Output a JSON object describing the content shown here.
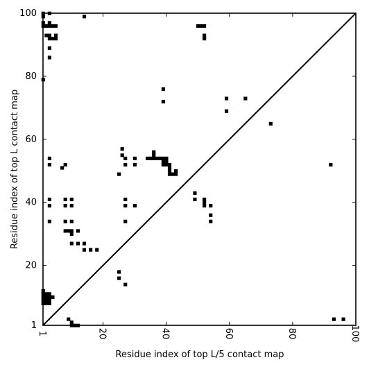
{
  "chart_data": {
    "type": "heatmap",
    "title": "",
    "xlabel": "Residue index of top L/5 contact map",
    "ylabel": "Residue index of top L contact map",
    "xlim": [
      1,
      100
    ],
    "ylim": [
      1,
      100
    ],
    "x_ticks": [
      "1",
      "20",
      "40",
      "60",
      "80",
      "100"
    ],
    "y_ticks": [
      "1",
      "20",
      "40",
      "60",
      "80",
      "100"
    ],
    "x_tick_values": [
      1,
      20,
      40,
      60,
      80,
      100
    ],
    "y_tick_values": [
      1,
      20,
      40,
      60,
      80,
      100
    ],
    "diagonal": true,
    "mark_color": "#000000",
    "upper_contacts": [
      [
        1,
        100
      ],
      [
        1,
        99
      ],
      [
        1,
        97
      ],
      [
        1,
        96
      ],
      [
        2,
        96
      ],
      [
        3,
        96
      ],
      [
        4,
        96
      ],
      [
        5,
        96
      ],
      [
        2,
        93
      ],
      [
        3,
        92
      ],
      [
        4,
        92
      ],
      [
        5,
        92
      ],
      [
        3,
        93
      ],
      [
        5,
        93
      ],
      [
        3,
        100
      ],
      [
        3,
        97
      ],
      [
        3,
        89
      ],
      [
        3,
        86
      ],
      [
        14,
        99
      ],
      [
        1,
        79
      ],
      [
        3,
        54
      ],
      [
        3,
        52
      ],
      [
        8,
        52
      ],
      [
        7,
        51
      ],
      [
        3,
        41
      ],
      [
        3,
        39
      ],
      [
        3,
        34
      ],
      [
        8,
        41
      ],
      [
        10,
        41
      ],
      [
        8,
        39
      ],
      [
        10,
        39
      ],
      [
        8,
        34
      ],
      [
        10,
        34
      ],
      [
        8,
        31
      ],
      [
        9,
        31
      ],
      [
        10,
        31
      ],
      [
        12,
        31
      ],
      [
        10,
        30
      ],
      [
        10,
        27
      ],
      [
        12,
        27
      ],
      [
        14,
        27
      ],
      [
        14,
        25
      ],
      [
        16,
        25
      ],
      [
        18,
        25
      ],
      [
        26,
        57
      ],
      [
        26,
        55
      ],
      [
        27,
        54
      ],
      [
        30,
        54
      ],
      [
        27,
        52
      ],
      [
        30,
        52
      ],
      [
        25,
        49
      ],
      [
        27,
        41
      ],
      [
        27,
        39
      ],
      [
        30,
        39
      ],
      [
        27,
        34
      ],
      [
        34,
        54
      ],
      [
        35,
        54
      ],
      [
        36,
        54
      ],
      [
        37,
        54
      ],
      [
        38,
        54
      ],
      [
        39,
        54
      ],
      [
        40,
        54
      ],
      [
        36,
        55
      ],
      [
        36,
        56
      ],
      [
        39,
        53
      ],
      [
        40,
        53
      ],
      [
        39,
        52
      ],
      [
        40,
        52
      ],
      [
        41,
        52
      ],
      [
        41,
        51
      ],
      [
        41,
        50
      ],
      [
        41,
        49
      ],
      [
        42,
        49
      ],
      [
        43,
        49
      ],
      [
        43,
        50
      ],
      [
        39,
        76
      ],
      [
        39,
        72
      ],
      [
        50,
        96
      ],
      [
        51,
        96
      ],
      [
        52,
        96
      ],
      [
        52,
        93
      ],
      [
        52,
        92
      ],
      [
        49,
        43
      ],
      [
        49,
        41
      ],
      [
        52,
        41
      ],
      [
        52,
        40
      ],
      [
        52,
        39
      ],
      [
        54,
        39
      ],
      [
        54,
        36
      ],
      [
        54,
        34
      ],
      [
        59,
        73
      ],
      [
        65,
        73
      ],
      [
        59,
        69
      ],
      [
        73,
        65
      ],
      [
        92,
        52
      ]
    ],
    "lower_contacts": [
      [
        1,
        12
      ],
      [
        1,
        11
      ],
      [
        2,
        11
      ],
      [
        3,
        11
      ],
      [
        1,
        10
      ],
      [
        2,
        10
      ],
      [
        3,
        10
      ],
      [
        4,
        10
      ],
      [
        1,
        9
      ],
      [
        2,
        9
      ],
      [
        3,
        9
      ],
      [
        1,
        8
      ],
      [
        2,
        8
      ],
      [
        3,
        8
      ],
      [
        9,
        3
      ],
      [
        10,
        2
      ],
      [
        10,
        1
      ],
      [
        11,
        1
      ],
      [
        12,
        1
      ],
      [
        25,
        18
      ],
      [
        25,
        16
      ],
      [
        27,
        14
      ],
      [
        93,
        3
      ],
      [
        96,
        3
      ]
    ]
  }
}
